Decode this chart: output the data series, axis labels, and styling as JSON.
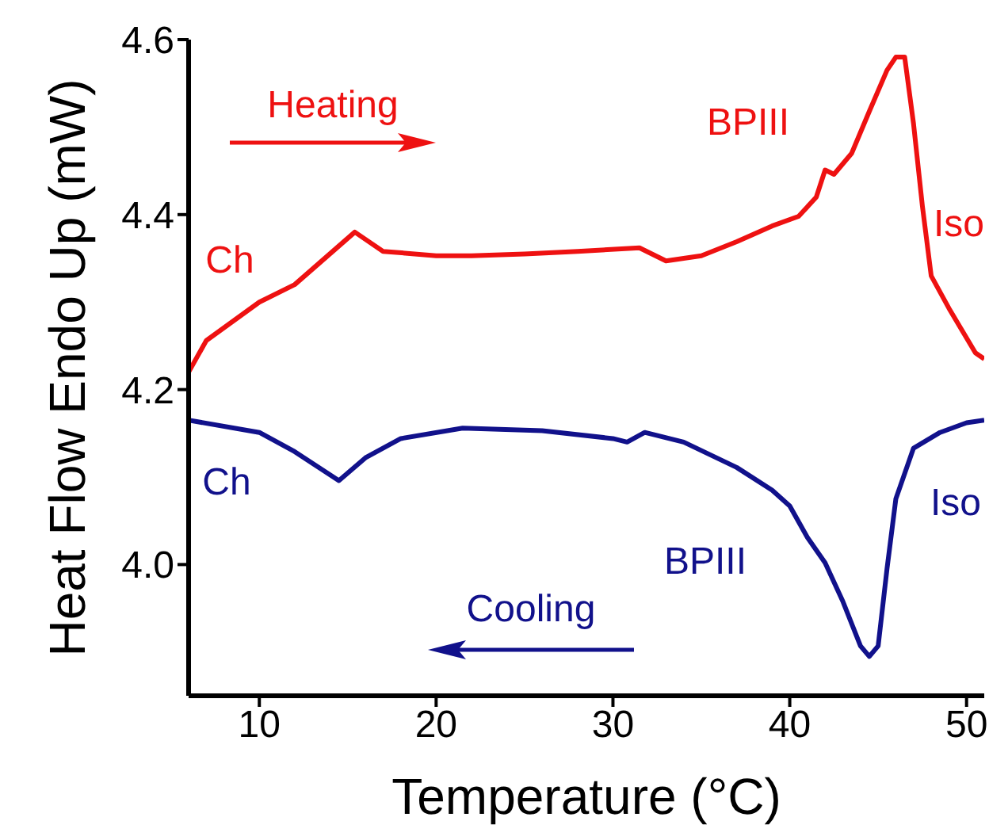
{
  "chart_data": {
    "type": "line",
    "xlabel": "Temperature (°C)",
    "ylabel": "Heat Flow Endo Up (mW)",
    "xlim": [
      6,
      51
    ],
    "ylim": [
      3.85,
      4.6
    ],
    "xticks": [
      10,
      20,
      30,
      40,
      50
    ],
    "yticks": [
      {
        "value": 4.0,
        "label": "4.0"
      },
      {
        "value": 4.2,
        "label": "4.2"
      },
      {
        "value": 4.4,
        "label": "4.4"
      },
      {
        "value": 4.6,
        "label": "4.6"
      }
    ],
    "grid": false,
    "legend": false,
    "marker": "none",
    "line_style": "solid",
    "series": [
      {
        "color": "#ee1111",
        "x": [
          6,
          7,
          10,
          12,
          15.4,
          17,
          20,
          22,
          25,
          28,
          31.5,
          33,
          35,
          37,
          39,
          40.5,
          41.5,
          42,
          42.5,
          43.5,
          44.5,
          45.5,
          46,
          46.5,
          47,
          47.5,
          48,
          49,
          50.5,
          51
        ],
        "values": [
          4.22,
          4.256,
          4.3,
          4.32,
          4.38,
          4.358,
          4.353,
          4.353,
          4.355,
          4.358,
          4.362,
          4.347,
          4.353,
          4.369,
          4.387,
          4.398,
          4.42,
          4.451,
          4.446,
          4.47,
          4.518,
          4.565,
          4.58,
          4.58,
          4.504,
          4.41,
          4.33,
          4.293,
          4.242,
          4.235
        ]
      },
      {
        "color": "#11118b",
        "x": [
          6,
          10,
          12,
          14.5,
          16,
          18,
          21.5,
          26,
          30,
          30.8,
          31.8,
          34,
          37,
          39,
          40,
          41,
          42,
          43,
          44,
          44.5,
          45,
          45.5,
          46,
          47,
          48.5,
          50,
          51
        ],
        "values": [
          4.165,
          4.151,
          4.129,
          4.096,
          4.122,
          4.144,
          4.156,
          4.153,
          4.144,
          4.14,
          4.151,
          4.14,
          4.111,
          4.085,
          4.067,
          4.031,
          4.002,
          3.958,
          3.907,
          3.895,
          3.907,
          3.995,
          4.075,
          4.133,
          4.151,
          4.162,
          4.165
        ]
      }
    ],
    "annotations": [
      "Heating",
      "Ch",
      "BPIII",
      "Iso",
      "Ch",
      "BPIII",
      "Iso",
      "Cooling"
    ]
  }
}
